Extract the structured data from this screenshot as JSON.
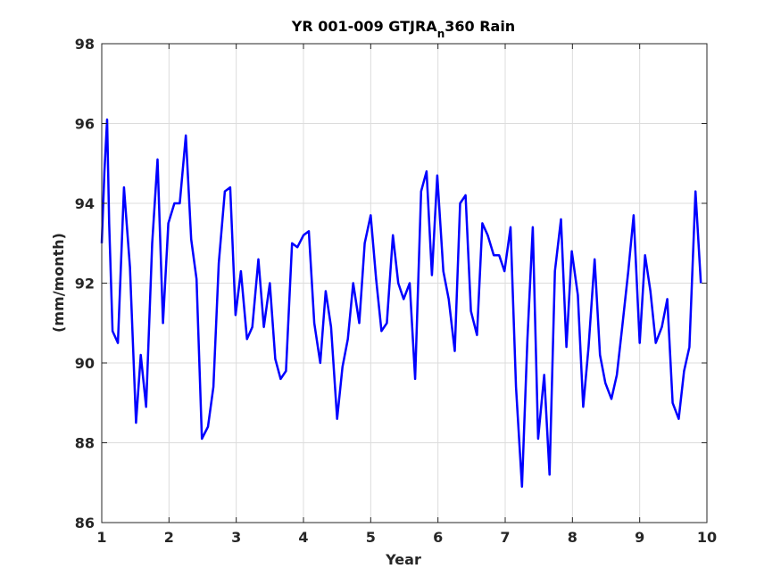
{
  "chart_data": {
    "type": "line",
    "title": {
      "main": "YR 001-009 GTJRA",
      "sub": "n",
      "tail": "360 Rain"
    },
    "xlabel": "Year",
    "ylabel": "(mm/month)",
    "xlim": [
      1,
      10
    ],
    "ylim": [
      86,
      98
    ],
    "xticks": [
      1,
      2,
      3,
      4,
      5,
      6,
      7,
      8,
      9,
      10
    ],
    "yticks": [
      86,
      88,
      90,
      92,
      94,
      96,
      98
    ],
    "grid": true,
    "line_color": "#0000ff",
    "series": [
      {
        "x": [
          1.0,
          1.04,
          1.08,
          1.11,
          1.16,
          1.24,
          1.33,
          1.42,
          1.51,
          1.58,
          1.66,
          1.75,
          1.83,
          1.91,
          1.99,
          2.08,
          2.16,
          2.25,
          2.33,
          2.41,
          2.49,
          2.58,
          2.66,
          2.74,
          2.83,
          2.91,
          2.99,
          3.07,
          3.16,
          3.24,
          3.33,
          3.41,
          3.5,
          3.58,
          3.66,
          3.74,
          3.83,
          3.91,
          4.0,
          4.08,
          4.16,
          4.25,
          4.33,
          4.41,
          4.5,
          4.58,
          4.66,
          4.74,
          4.83,
          4.91,
          5.0,
          5.08,
          5.16,
          5.24,
          5.33,
          5.41,
          5.49,
          5.58,
          5.66,
          5.75,
          5.83,
          5.91,
          5.99,
          6.08,
          6.16,
          6.25,
          6.33,
          6.41,
          6.49,
          6.58,
          6.66,
          6.74,
          6.83,
          6.91,
          6.99,
          7.08,
          7.16,
          7.25,
          7.33,
          7.41,
          7.49,
          7.58,
          7.66,
          7.74,
          7.83,
          7.91,
          7.99,
          8.08,
          8.16,
          8.24,
          8.33,
          8.41,
          8.49,
          8.58,
          8.66,
          8.74,
          8.83,
          8.91,
          9.0,
          9.08,
          9.16,
          9.24,
          9.33,
          9.41,
          9.49,
          9.58,
          9.66,
          9.74,
          9.83,
          9.91
        ],
        "y": [
          93.0,
          94.8,
          96.1,
          93.5,
          90.8,
          90.5,
          94.4,
          92.4,
          88.5,
          90.2,
          88.9,
          93.0,
          95.1,
          91.0,
          93.5,
          94.0,
          94.0,
          95.7,
          93.1,
          92.1,
          88.1,
          88.4,
          89.4,
          92.5,
          94.3,
          94.4,
          91.2,
          92.3,
          90.6,
          90.9,
          92.6,
          90.9,
          92.0,
          90.1,
          89.6,
          89.8,
          93.0,
          92.9,
          93.2,
          93.3,
          91.0,
          90.0,
          91.8,
          90.9,
          88.6,
          89.9,
          90.6,
          92.0,
          91.0,
          93.0,
          93.7,
          92.1,
          90.8,
          91.0,
          93.2,
          92.0,
          91.6,
          92.0,
          89.6,
          94.3,
          94.8,
          92.2,
          94.7,
          92.3,
          91.6,
          90.3,
          94.0,
          94.2,
          91.3,
          90.7,
          93.5,
          93.2,
          92.7,
          92.7,
          92.3,
          93.4,
          89.4,
          86.9,
          90.6,
          93.4,
          88.1,
          89.7,
          87.2,
          92.3,
          93.6,
          90.4,
          92.8,
          91.7,
          88.9,
          90.4,
          92.6,
          90.2,
          89.5,
          89.1,
          89.7,
          90.9,
          92.3,
          93.7,
          90.5,
          92.7,
          91.8,
          90.5,
          90.9,
          91.6,
          89.0,
          88.6,
          89.8,
          90.4,
          94.3,
          92.0
        ]
      }
    ]
  }
}
